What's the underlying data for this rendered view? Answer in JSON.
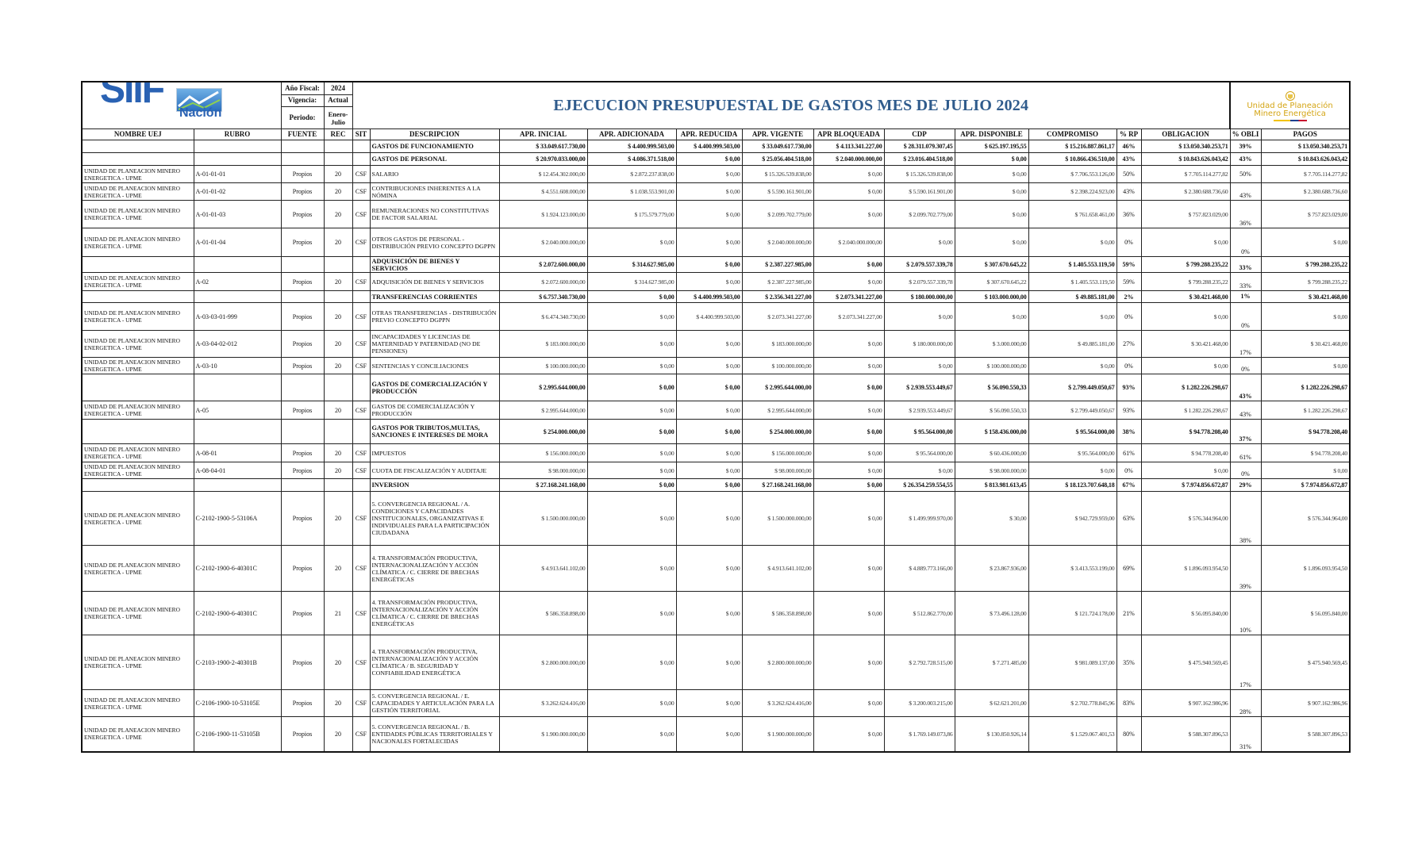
{
  "header": {
    "logo_left": "SIIF Nación",
    "anio_fiscal_label": "Año Fiscal:",
    "anio_fiscal": "2024",
    "vigencia_label": "Vigencia:",
    "vigencia": "Actual",
    "periodo_label": "Periodo:",
    "periodo": "Enero-Julio",
    "title": "EJECUCION PRESUPUESTAL DE GASTOS MES DE JULIO 2024",
    "logo_right_line1": "Unidad de Planeación",
    "logo_right_line2": "Minero Energética"
  },
  "columns": [
    "NOMBRE UEJ",
    "RUBRO",
    "FUENTE",
    "REC",
    "SIT",
    "DESCRIPCION",
    "APR. INICIAL",
    "APR. ADICIONADA",
    "APR. REDUCIDA",
    "APR. VIGENTE",
    "APR BLOQUEADA",
    "CDP",
    "APR. DISPONIBLE",
    "COMPROMISO",
    "% RP",
    "OBLIGACION",
    "% OBLI",
    "PAGOS"
  ],
  "rows": [
    {
      "bold": true,
      "uej": "",
      "rubro": "",
      "fuente": "",
      "rec": "",
      "sit": "",
      "desc": "GASTOS DE FUNCIONAMIENTO",
      "v": [
        "$ 33.049.617.730,00",
        "$ 4.400.999.503,00",
        "$ 4.400.999.503,00",
        "$ 33.049.617.730,00",
        "$ 4.113.341.227,00",
        "$ 28.311.079.307,45",
        "$ 625.197.195,55",
        "$ 15.216.887.861,17",
        "46%",
        "$ 13.050.340.253,71",
        "39%",
        "$ 13.050.340.253,71"
      ]
    },
    {
      "bold": true,
      "uej": "",
      "rubro": "",
      "fuente": "",
      "rec": "",
      "sit": "",
      "desc": "GASTOS DE PERSONAL",
      "v": [
        "$ 20.970.033.000,00",
        "$ 4.086.371.518,00",
        "$ 0,00",
        "$ 25.056.404.518,00",
        "$ 2.040.000.000,00",
        "$ 23.016.404.518,00",
        "$ 0,00",
        "$ 10.866.436.510,00",
        "43%",
        "$ 10.843.626.043,42",
        "43%",
        "$ 10.843.626.043,42"
      ]
    },
    {
      "bold": false,
      "uej": "UNIDAD DE PLANEACION MINERO ENERGETICA - UPME",
      "rubro": "A-01-01-01",
      "fuente": "Propios",
      "rec": "20",
      "sit": "CSF",
      "desc": "SALARIO",
      "v": [
        "$ 12.454.302.000,00",
        "$ 2.872.237.838,00",
        "$ 0,00",
        "$ 15.326.539.838,00",
        "$ 0,00",
        "$ 15.326.539.838,00",
        "$ 0,00",
        "$ 7.706.553.126,00",
        "50%",
        "$ 7.705.114.277,82",
        "50%",
        "$ 7.705.114.277,82"
      ]
    },
    {
      "bold": false,
      "uej": "UNIDAD DE PLANEACION MINERO ENERGETICA - UPME",
      "rubro": "A-01-01-02",
      "fuente": "Propios",
      "rec": "20",
      "sit": "CSF",
      "desc": "CONTRIBUCIONES INHERENTES A LA NÓMINA",
      "v": [
        "$ 4.551.608.000,00",
        "$ 1.038.553.901,00",
        "$ 0,00",
        "$ 5.590.161.901,00",
        "$ 0,00",
        "$ 5.590.161.901,00",
        "$ 0,00",
        "$ 2.398.224.923,00",
        "43%",
        "$ 2.380.688.736,60",
        "43%",
        "$ 2.380.688.736,60"
      ]
    },
    {
      "bold": false,
      "uej": "UNIDAD DE PLANEACION MINERO ENERGETICA - UPME",
      "rubro": "A-01-01-03",
      "fuente": "Propios",
      "rec": "20",
      "sit": "CSF",
      "desc": "REMUNERACIONES NO CONSTITUTIVAS DE FACTOR SALARIAL",
      "v": [
        "$ 1.924.123.000,00",
        "$ 175.579.779,00",
        "$ 0,00",
        "$ 2.099.702.779,00",
        "$ 0,00",
        "$ 2.099.702.779,00",
        "$ 0,00",
        "$ 761.658.461,00",
        "36%",
        "$ 757.823.029,00",
        "36%",
        "$ 757.823.029,00"
      ]
    },
    {
      "bold": false,
      "uej": "UNIDAD DE PLANEACION MINERO ENERGETICA - UPME",
      "rubro": "A-01-01-04",
      "fuente": "Propios",
      "rec": "20",
      "sit": "CSF",
      "desc": "OTROS GASTOS DE PERSONAL - DISTRIBUCIÓN PREVIO CONCEPTO DGPPN",
      "v": [
        "$ 2.040.000.000,00",
        "$ 0,00",
        "$ 0,00",
        "$ 2.040.000.000,00",
        "$ 2.040.000.000,00",
        "$ 0,00",
        "$ 0,00",
        "$ 0,00",
        "0%",
        "$ 0,00",
        "0%",
        "$ 0,00"
      ]
    },
    {
      "bold": true,
      "uej": "",
      "rubro": "",
      "fuente": "",
      "rec": "",
      "sit": "",
      "desc": "ADQUISICIÓN DE BIENES Y SERVICIOS",
      "v": [
        "$ 2.072.600.000,00",
        "$ 314.627.985,00",
        "$ 0,00",
        "$ 2.387.227.985,00",
        "$ 0,00",
        "$ 2.079.557.339,78",
        "$ 307.670.645,22",
        "$ 1.405.553.119,50",
        "59%",
        "$ 799.288.235,22",
        "33%",
        "$ 799.288.235,22"
      ]
    },
    {
      "bold": false,
      "uej": "UNIDAD DE PLANEACION MINERO ENERGETICA - UPME",
      "rubro": "A-02",
      "fuente": "Propios",
      "rec": "20",
      "sit": "CSF",
      "desc": "ADQUISICIÓN DE BIENES Y SERVICIOS",
      "v": [
        "$ 2.072.600.000,00",
        "$ 314.627.985,00",
        "$ 0,00",
        "$ 2.387.227.985,00",
        "$ 0,00",
        "$ 2.079.557.339,78",
        "$ 307.670.645,22",
        "$ 1.405.553.119,50",
        "59%",
        "$ 799.288.235,22",
        "33%",
        "$ 799.288.235,22"
      ]
    },
    {
      "bold": true,
      "uej": "",
      "rubro": "",
      "fuente": "",
      "rec": "",
      "sit": "",
      "desc": "TRANSFERENCIAS CORRIENTES",
      "v": [
        "$ 6.757.340.730,00",
        "$ 0,00",
        "$ 4.400.999.503,00",
        "$ 2.356.341.227,00",
        "$ 2.073.341.227,00",
        "$ 180.000.000,00",
        "$ 103.000.000,00",
        "$ 49.885.181,00",
        "2%",
        "$ 30.421.468,00",
        "1%",
        "$ 30.421.468,00"
      ]
    },
    {
      "bold": false,
      "uej": "UNIDAD DE PLANEACION MINERO ENERGETICA - UPME",
      "rubro": "A-03-03-01-999",
      "fuente": "Propios",
      "rec": "20",
      "sit": "CSF",
      "desc": "OTRAS TRANSFERENCIAS - DISTRIBUCIÓN PREVIO CONCEPTO DGPPN",
      "v": [
        "$ 6.474.340.730,00",
        "$ 0,00",
        "$ 4.400.999.503,00",
        "$ 2.073.341.227,00",
        "$ 2.073.341.227,00",
        "$ 0,00",
        "$ 0,00",
        "$ 0,00",
        "0%",
        "$ 0,00",
        "0%",
        "$ 0,00"
      ]
    },
    {
      "bold": false,
      "uej": "UNIDAD DE PLANEACION MINERO ENERGETICA - UPME",
      "rubro": "A-03-04-02-012",
      "fuente": "Propios",
      "rec": "20",
      "sit": "CSF",
      "desc": "INCAPACIDADES Y LICENCIAS DE MATERNIDAD Y PATERNIDAD (NO DE PENSIONES)",
      "v": [
        "$ 183.000.000,00",
        "$ 0,00",
        "$ 0,00",
        "$ 183.000.000,00",
        "$ 0,00",
        "$ 180.000.000,00",
        "$ 3.000.000,00",
        "$ 49.885.181,00",
        "27%",
        "$ 30.421.468,00",
        "17%",
        "$ 30.421.468,00"
      ]
    },
    {
      "bold": false,
      "uej": "UNIDAD DE PLANEACION MINERO ENERGETICA - UPME",
      "rubro": "A-03-10",
      "fuente": "Propios",
      "rec": "20",
      "sit": "CSF",
      "desc": "SENTENCIAS Y CONCILIACIONES",
      "v": [
        "$ 100.000.000,00",
        "$ 0,00",
        "$ 0,00",
        "$ 100.000.000,00",
        "$ 0,00",
        "$ 0,00",
        "$ 100.000.000,00",
        "$ 0,00",
        "0%",
        "$ 0,00",
        "0%",
        "$ 0,00"
      ]
    },
    {
      "bold": true,
      "uej": "",
      "rubro": "",
      "fuente": "",
      "rec": "",
      "sit": "",
      "desc": "GASTOS DE COMERCIALIZACIÓN Y PRODUCCIÓN",
      "v": [
        "$ 2.995.644.000,00",
        "$ 0,00",
        "$ 0,00",
        "$ 2.995.644.000,00",
        "$ 0,00",
        "$ 2.939.553.449,67",
        "$ 56.090.550,33",
        "$ 2.799.449.050,67",
        "93%",
        "$ 1.282.226.298,67",
        "43%",
        "$ 1.282.226.298,67"
      ]
    },
    {
      "bold": false,
      "uej": "UNIDAD DE PLANEACION MINERO ENERGETICA - UPME",
      "rubro": "A-05",
      "fuente": "Propios",
      "rec": "20",
      "sit": "CSF",
      "desc": "GASTOS DE COMERCIALIZACIÓN Y PRODUCCIÓN",
      "v": [
        "$ 2.995.644.000,00",
        "$ 0,00",
        "$ 0,00",
        "$ 2.995.644.000,00",
        "$ 0,00",
        "$ 2.939.553.449,67",
        "$ 56.090.550,33",
        "$ 2.799.449.050,67",
        "93%",
        "$ 1.282.226.298,67",
        "43%",
        "$ 1.282.226.298,67"
      ]
    },
    {
      "bold": true,
      "uej": "",
      "rubro": "",
      "fuente": "",
      "rec": "",
      "sit": "",
      "desc": "GASTOS POR TRIBUTOS,MULTAS, SANCIONES E INTERESES DE MORA",
      "v": [
        "$ 254.000.000,00",
        "$ 0,00",
        "$ 0,00",
        "$ 254.000.000,00",
        "$ 0,00",
        "$ 95.564.000,00",
        "$ 158.436.000,00",
        "$ 95.564.000,00",
        "38%",
        "$ 94.778.208,40",
        "37%",
        "$ 94.778.208,40"
      ]
    },
    {
      "bold": false,
      "uej": "UNIDAD DE PLANEACION MINERO ENERGETICA - UPME",
      "rubro": "A-08-01",
      "fuente": "Propios",
      "rec": "20",
      "sit": "CSF",
      "desc": "IMPUESTOS",
      "v": [
        "$ 156.000.000,00",
        "$ 0,00",
        "$ 0,00",
        "$ 156.000.000,00",
        "$ 0,00",
        "$ 95.564.000,00",
        "$ 60.436.000,00",
        "$ 95.564.000,00",
        "61%",
        "$ 94.778.208,40",
        "61%",
        "$ 94.778.208,40"
      ]
    },
    {
      "bold": false,
      "uej": "UNIDAD DE PLANEACION MINERO ENERGETICA - UPME",
      "rubro": "A-08-04-01",
      "fuente": "Propios",
      "rec": "20",
      "sit": "CSF",
      "desc": "CUOTA DE FISCALIZACIÓN Y AUDITAJE",
      "v": [
        "$ 98.000.000,00",
        "$ 0,00",
        "$ 0,00",
        "$ 98.000.000,00",
        "$ 0,00",
        "$ 0,00",
        "$ 98.000.000,00",
        "$ 0,00",
        "0%",
        "$ 0,00",
        "0%",
        "$ 0,00"
      ]
    },
    {
      "bold": true,
      "uej": "",
      "rubro": "",
      "fuente": "",
      "rec": "",
      "sit": "",
      "desc": "INVERSION",
      "v": [
        "$ 27.168.241.168,00",
        "$ 0,00",
        "$ 0,00",
        "$ 27.168.241.168,00",
        "$ 0,00",
        "$ 26.354.259.554,55",
        "$ 813.981.613,45",
        "$ 18.123.707.648,18",
        "67%",
        "$ 7.974.856.672,87",
        "29%",
        "$ 7.974.856.672,87"
      ]
    },
    {
      "bold": false,
      "uej": "UNIDAD DE PLANEACION MINERO ENERGETICA - UPME",
      "rubro": "C-2102-1900-5-53106A",
      "fuente": "Propios",
      "rec": "20",
      "sit": "CSF",
      "desc": "5. CONVERGENCIA REGIONAL / A. CONDICIONES Y CAPACIDADES INSTITUCIONALES, ORGANIZATIVAS E INDIVIDUALES PARA LA PARTICIPACIÓN CIUDADANA",
      "v": [
        "$ 1.500.000.000,00",
        "$ 0,00",
        "$ 0,00",
        "$ 1.500.000.000,00",
        "$ 0,00",
        "$ 1.499.999.970,00",
        "$ 30,00",
        "$ 942.729.959,00",
        "63%",
        "$ 576.344.964,00",
        "38%",
        "$ 576.344.964,00"
      ]
    },
    {
      "bold": false,
      "uej": "UNIDAD DE PLANEACION MINERO ENERGETICA - UPME",
      "rubro": "C-2102-1900-6-40301C",
      "fuente": "Propios",
      "rec": "20",
      "sit": "CSF",
      "desc": "4. TRANSFORMACIÓN PRODUCTIVA, INTERNACIONALIZACIÓN Y ACCIÓN CLÍMATICA / C. CIERRE DE BRECHAS ENERGÉTICAS",
      "v": [
        "$ 4.913.641.102,00",
        "$ 0,00",
        "$ 0,00",
        "$ 4.913.641.102,00",
        "$ 0,00",
        "$ 4.889.773.166,00",
        "$ 23.867.936,00",
        "$ 3.413.553.199,00",
        "69%",
        "$ 1.896.093.954,50",
        "39%",
        "$ 1.896.093.954,50"
      ]
    },
    {
      "bold": false,
      "uej": "UNIDAD DE PLANEACION MINERO ENERGETICA - UPME",
      "rubro": "C-2102-1900-6-40301C",
      "fuente": "Propios",
      "rec": "21",
      "sit": "CSF",
      "desc": "4. TRANSFORMACIÓN PRODUCTIVA, INTERNACIONALIZACIÓN Y ACCIÓN CLÍMATICA / C. CIERRE DE BRECHAS ENERGÉTICAS",
      "v": [
        "$ 586.358.898,00",
        "$ 0,00",
        "$ 0,00",
        "$ 586.358.898,00",
        "$ 0,00",
        "$ 512.862.770,00",
        "$ 73.496.128,00",
        "$ 121.724.178,00",
        "21%",
        "$ 56.095.840,00",
        "10%",
        "$ 56.095.840,00"
      ]
    },
    {
      "bold": false,
      "uej": "UNIDAD DE PLANEACION MINERO ENERGETICA - UPME",
      "rubro": "C-2103-1900-2-40301B",
      "fuente": "Propios",
      "rec": "20",
      "sit": "CSF",
      "desc": "4. TRANSFORMACIÓN PRODUCTIVA, INTERNACIONALIZACIÓN Y ACCIÓN CLÍMATICA / B. SEGURIDAD Y CONFIABILIDAD ENERGÉTICA",
      "v": [
        "$ 2.800.000.000,00",
        "$ 0,00",
        "$ 0,00",
        "$ 2.800.000.000,00",
        "$ 0,00",
        "$ 2.792.728.515,00",
        "$ 7.271.485,00",
        "$ 981.089.137,00",
        "35%",
        "$ 475.940.569,45",
        "17%",
        "$ 475.940.569,45"
      ]
    },
    {
      "bold": false,
      "uej": "UNIDAD DE PLANEACION MINERO ENERGETICA - UPME",
      "rubro": "C-2106-1900-10-53105E",
      "fuente": "Propios",
      "rec": "20",
      "sit": "CSF",
      "desc": "5. CONVERGENCIA REGIONAL / E. CAPACIDADES Y ARTICULACIÓN PARA LA GESTIÓN TERRITORIAL",
      "v": [
        "$ 3.262.624.416,00",
        "$ 0,00",
        "$ 0,00",
        "$ 3.262.624.416,00",
        "$ 0,00",
        "$ 3.200.003.215,00",
        "$ 62.621.201,00",
        "$ 2.702.778.845,96",
        "83%",
        "$ 907.162.986,96",
        "28%",
        "$ 907.162.986,96"
      ]
    },
    {
      "bold": false,
      "uej": "UNIDAD DE PLANEACION MINERO ENERGETICA - UPME",
      "rubro": "C-2106-1900-11-53105B",
      "fuente": "Propios",
      "rec": "20",
      "sit": "CSF",
      "desc": "5. CONVERGENCIA REGIONAL / B. ENTIDADES PÚBLICAS TERRITORIALES Y NACIONALES FORTALECIDAS",
      "v": [
        "$ 1.900.000.000,00",
        "$ 0,00",
        "$ 0,00",
        "$ 1.900.000.000,00",
        "$ 0,00",
        "$ 1.769.149.073,86",
        "$ 130.850.926,14",
        "$ 1.529.067.401,53",
        "80%",
        "$ 588.307.896,53",
        "31%",
        "$ 588.307.896,53"
      ]
    }
  ]
}
